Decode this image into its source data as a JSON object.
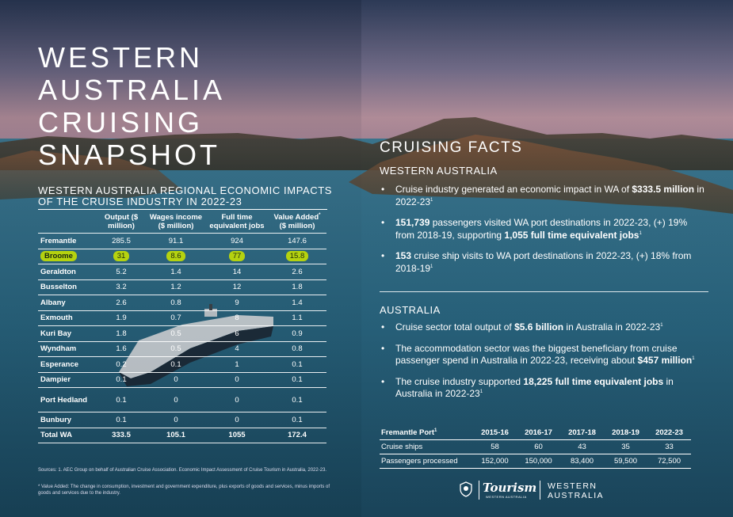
{
  "title_lines": [
    "WESTERN",
    "AUSTRALIA",
    "CRUISING",
    "SNAPSHOT"
  ],
  "regional": {
    "title": "WESTERN AUSTRALIA REGIONAL ECONOMIC IMPACTS OF THE CRUISE INDUSTRY IN 2022-23",
    "headers": {
      "output": "Output ($ million)",
      "wages": "Wages income ($ million)",
      "jobs": "Full time equivalent jobs",
      "value_added": "Value Added",
      "value_added_sup": "*",
      "value_added_unit": "($ million)"
    },
    "rows": [
      {
        "region": "Fremantle",
        "output": "285.5",
        "wages": "91.1",
        "jobs": "924",
        "va": "147.6"
      },
      {
        "region": "Broome",
        "output": "31",
        "wages": "8.6",
        "jobs": "77",
        "va": "15.8"
      },
      {
        "region": "Geraldton",
        "output": "5.2",
        "wages": "1.4",
        "jobs": "14",
        "va": "2.6"
      },
      {
        "region": "Busselton",
        "output": "3.2",
        "wages": "1.2",
        "jobs": "12",
        "va": "1.8"
      },
      {
        "region": "Albany",
        "output": "2.6",
        "wages": "0.8",
        "jobs": "9",
        "va": "1.4"
      },
      {
        "region": "Exmouth",
        "output": "1.9",
        "wages": "0.7",
        "jobs": "8",
        "va": "1.1"
      },
      {
        "region": "Kuri Bay",
        "output": "1.8",
        "wages": "0.5",
        "jobs": "6",
        "va": "0.9"
      },
      {
        "region": "Wyndham",
        "output": "1.6",
        "wages": "0.5",
        "jobs": "4",
        "va": "0.8"
      },
      {
        "region": "Esperance",
        "output": "0.2",
        "wages": "0.1",
        "jobs": "1",
        "va": "0.1"
      },
      {
        "region": "Dampier",
        "output": "0.1",
        "wages": "0",
        "jobs": "0",
        "va": "0.1"
      },
      {
        "region": "Port Hedland",
        "output": "0.1",
        "wages": "0",
        "jobs": "0",
        "va": "0.1"
      },
      {
        "region": "Bunbury",
        "output": "0.1",
        "wages": "0",
        "jobs": "0",
        "va": "0.1"
      }
    ],
    "total": {
      "region": "Total WA",
      "output": "333.5",
      "wages": "105.1",
      "jobs": "1055",
      "va": "172.4"
    },
    "highlight_color": "#b5d20f"
  },
  "sources": "Sources: 1. AEC Group on behalf of Australian Cruise Association. Economic Impact Assessment of Cruise Tourism in Australia, 2022-23.",
  "value_added_note": "* Value Added: The change in consumption, investment and government expenditure, plus exports of goods and services, minus imports of goods and services due to the industry.",
  "facts": {
    "title": "CRUISING FACTS",
    "wa_title": "WESTERN AUSTRALIA",
    "wa": {
      "f1_text": "Cruise industry generated an economic impact in WA of ",
      "f1_bold": "$333.5 million",
      "f1_tail": " in 2022-23",
      "f2_bold1": "151,739",
      "f2_text": " passengers visited WA port destinations in 2022-23, (+) 19% from 2018-19, supporting ",
      "f2_bold2": "1,055 full time equivalent jobs",
      "f3_bold": "153",
      "f3_text": " cruise ship visits to WA port destinations in 2022-23, (+) 18% from 2018-19"
    },
    "au_title": "AUSTRALIA",
    "au": {
      "f1_text": "Cruise sector total output of ",
      "f1_bold": "$5.6 billion",
      "f1_tail": " in Australia in 2022-23",
      "f2_text": "The accommodation sector was the biggest beneficiary from cruise passenger spend in Australia in 2022-23, receiving about ",
      "f2_bold": "$457 million",
      "f3_text": "The cruise industry supported ",
      "f3_bold": "18,225 full time equivalent jobs",
      "f3_tail": " in Australia in 2022-23"
    },
    "footnote_marker": "1"
  },
  "port": {
    "label": "Fremantle Port",
    "label_sup": "1",
    "years": [
      "2015-16",
      "2016-17",
      "2017-18",
      "2018-19",
      "2022-23"
    ],
    "rows": [
      {
        "label": "Cruise ships",
        "values": [
          "58",
          "60",
          "43",
          "35",
          "33"
        ]
      },
      {
        "label": "Passengers processed",
        "values": [
          "152,000",
          "150,000",
          "83,400",
          "59,500",
          "72,500"
        ]
      }
    ]
  },
  "logos": {
    "tourism": "Tourism",
    "tourism_sub": "WESTERN AUSTRALIA",
    "wa_line1": "WESTERN",
    "wa_line2": "AUSTRALIA"
  }
}
